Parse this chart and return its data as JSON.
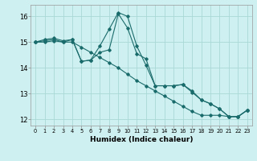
{
  "xlabel": "Humidex (Indice chaleur)",
  "background_color": "#cff0f0",
  "grid_color": "#aad8d8",
  "line_color": "#1a6b6b",
  "xlim": [
    -0.5,
    23.5
  ],
  "ylim": [
    11.75,
    16.45
  ],
  "yticks": [
    12,
    13,
    14,
    15,
    16
  ],
  "xticks": [
    0,
    1,
    2,
    3,
    4,
    5,
    6,
    7,
    8,
    9,
    10,
    11,
    12,
    13,
    14,
    15,
    16,
    17,
    18,
    19,
    20,
    21,
    22,
    23
  ],
  "line1_x": [
    0,
    1,
    2,
    3,
    4,
    5,
    6,
    7,
    8,
    9,
    10,
    11,
    12,
    13,
    14,
    15,
    16,
    17,
    18,
    19,
    20,
    21,
    22,
    23
  ],
  "line1_y": [
    15.0,
    15.1,
    15.15,
    15.05,
    15.1,
    14.25,
    14.3,
    14.85,
    15.5,
    16.15,
    16.0,
    14.85,
    14.1,
    13.3,
    13.3,
    13.3,
    13.35,
    13.1,
    12.75,
    12.6,
    12.4,
    12.1,
    12.1,
    12.35
  ],
  "line2_x": [
    0,
    1,
    2,
    3,
    4,
    5,
    6,
    7,
    8,
    9,
    10,
    11,
    12,
    13,
    14,
    15,
    16,
    17,
    18,
    19,
    20,
    21,
    22,
    23
  ],
  "line2_y": [
    15.0,
    15.05,
    15.1,
    15.0,
    15.1,
    14.25,
    14.3,
    14.6,
    14.7,
    16.1,
    15.55,
    14.55,
    14.35,
    13.3,
    13.3,
    13.3,
    13.35,
    13.05,
    12.75,
    12.6,
    12.4,
    12.1,
    12.1,
    12.35
  ],
  "line3_x": [
    0,
    1,
    2,
    3,
    4,
    5,
    6,
    7,
    8,
    9,
    10,
    11,
    12,
    13,
    14,
    15,
    16,
    17,
    18,
    19,
    20,
    21,
    22,
    23
  ],
  "line3_y": [
    15.0,
    15.0,
    15.05,
    15.0,
    15.0,
    14.8,
    14.6,
    14.4,
    14.2,
    14.0,
    13.75,
    13.5,
    13.3,
    13.1,
    12.9,
    12.7,
    12.5,
    12.3,
    12.15,
    12.15,
    12.15,
    12.1,
    12.1,
    12.35
  ]
}
